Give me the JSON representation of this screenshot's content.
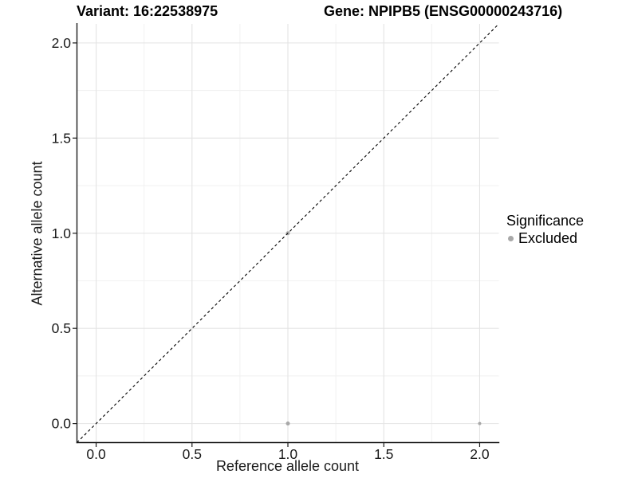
{
  "header": {
    "variant_title": "Variant: 16:22538975",
    "gene_title": "Gene: NPIPB5 (ENSG00000243716)"
  },
  "chart_data": {
    "type": "scatter",
    "xlabel": "Reference allele count",
    "ylabel": "Alternative allele count",
    "xlim": [
      -0.1,
      2.1
    ],
    "ylim": [
      -0.1,
      2.1
    ],
    "x_ticks": [
      0.0,
      0.5,
      1.0,
      1.5,
      2.0
    ],
    "x_tick_labels": [
      "0.0",
      "0.5",
      "1.0",
      "1.5",
      "2.0"
    ],
    "y_ticks": [
      0.0,
      0.5,
      1.0,
      1.5,
      2.0
    ],
    "y_tick_labels": [
      "0.0",
      "0.5",
      "1.0",
      "1.5",
      "2.0"
    ],
    "x_minor_ticks": [
      0.25,
      0.75,
      1.25,
      1.75
    ],
    "y_minor_ticks": [
      0.25,
      0.75,
      1.25,
      1.75
    ],
    "grid": "major+minor",
    "identity_line": {
      "type": "abline",
      "slope": 1,
      "intercept": 0,
      "linetype": "dashed",
      "color": "#000000"
    },
    "series": [
      {
        "name": "Excluded",
        "color": "#a8a8a8",
        "points": [
          {
            "x": 1.0,
            "y": 1.0,
            "r": 2.5
          },
          {
            "x": 1.0,
            "y": 0.0,
            "r": 2.5
          },
          {
            "x": 2.0,
            "y": 0.0,
            "r": 2.0
          }
        ]
      }
    ],
    "legend": {
      "title": "Significance",
      "position": "right",
      "items": [
        {
          "label": "Excluded",
          "color": "#a8a8a8",
          "marker": "circle"
        }
      ]
    },
    "colors": {
      "background": "#ffffff",
      "grid_major": "#e3e3e3",
      "grid_minor": "#f1f1f1",
      "axis": "#1a1a1a",
      "text": "#1a1a1a"
    }
  }
}
